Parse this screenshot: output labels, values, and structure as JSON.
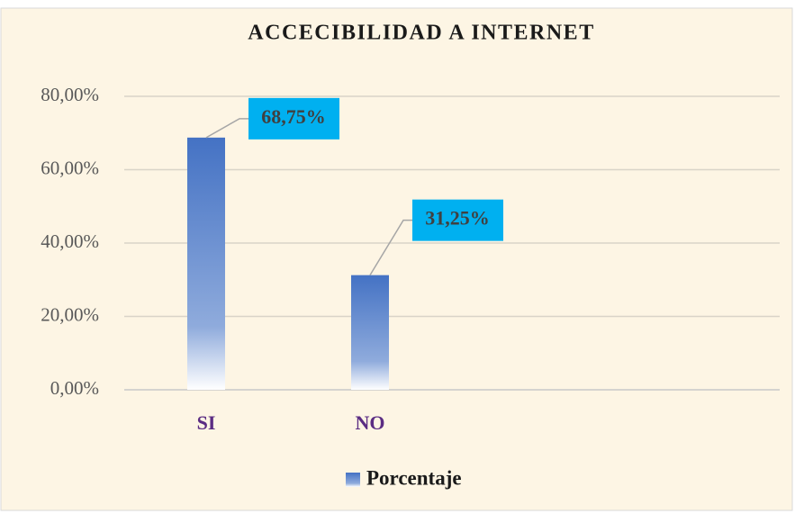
{
  "chart_data": {
    "type": "bar",
    "title": "ACCECIBILIDAD A INTERNET",
    "categories": [
      "SI",
      "NO"
    ],
    "series": [
      {
        "name": "Porcentaje",
        "color": "#4472c4",
        "values": [
          68.75,
          31.25
        ],
        "value_labels": [
          "68,75%",
          "31,25%"
        ]
      }
    ],
    "ylim": [
      0,
      80
    ],
    "yticks": [
      {
        "value": 0,
        "label": "0,00%"
      },
      {
        "value": 20,
        "label": "20,00%"
      },
      {
        "value": 40,
        "label": "40,00%"
      },
      {
        "value": 60,
        "label": "60,00%"
      },
      {
        "value": 80,
        "label": "80,00%"
      }
    ],
    "grid": true,
    "legend": "bottom",
    "label_color": "#00b0f0"
  }
}
